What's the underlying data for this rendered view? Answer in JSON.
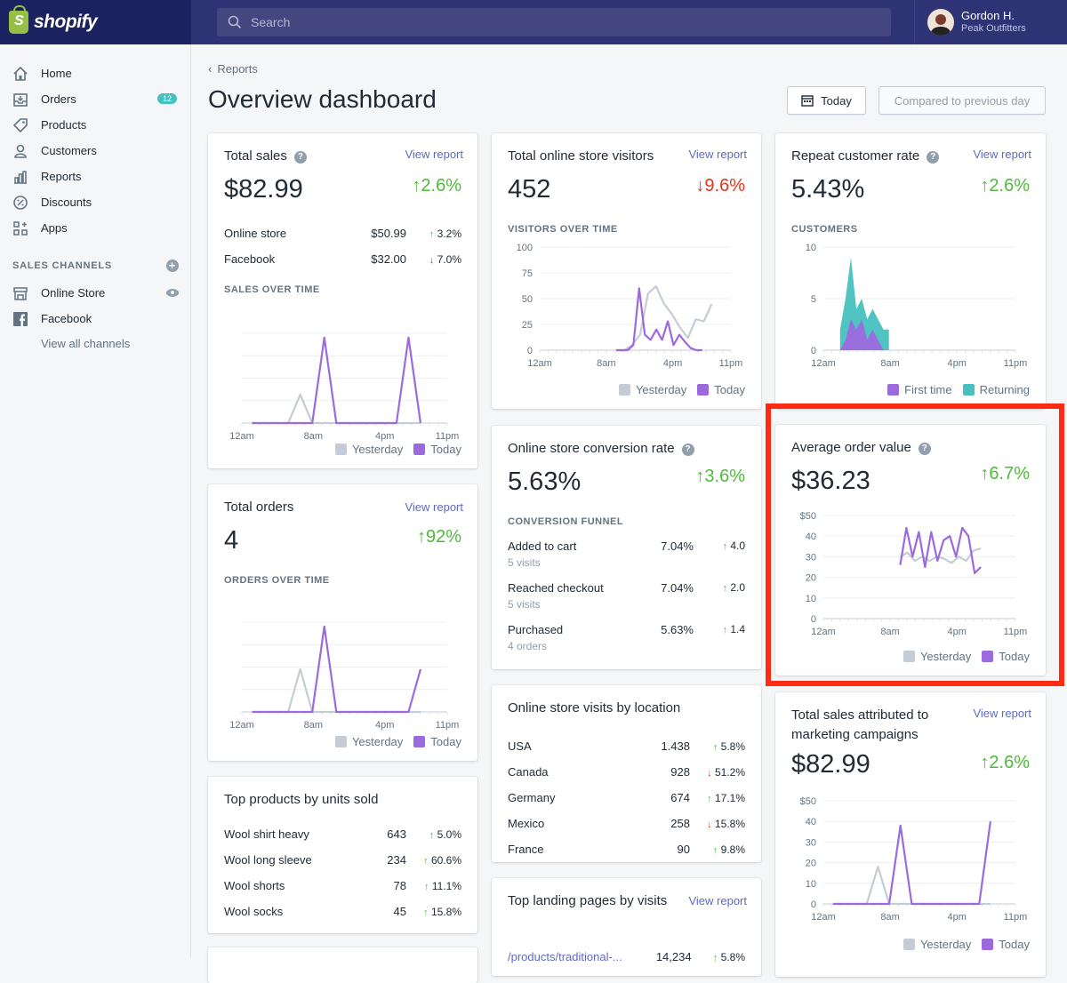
{
  "brand": {
    "name": "shopify"
  },
  "search": {
    "placeholder": "Search"
  },
  "user": {
    "name": "Gordon H.",
    "store": "Peak Outfitters"
  },
  "sidebar": {
    "items": [
      {
        "label": "Home",
        "icon": "home-icon"
      },
      {
        "label": "Orders",
        "icon": "orders-icon",
        "badge": "12"
      },
      {
        "label": "Products",
        "icon": "tag-icon"
      },
      {
        "label": "Customers",
        "icon": "person-icon"
      },
      {
        "label": "Reports",
        "icon": "bar-chart-icon"
      },
      {
        "label": "Discounts",
        "icon": "discount-icon"
      },
      {
        "label": "Apps",
        "icon": "apps-icon"
      }
    ],
    "sales_channels_header": "SALES CHANNELS",
    "channels": [
      {
        "label": "Online Store",
        "icon": "store-icon"
      },
      {
        "label": "Facebook",
        "icon": "facebook-icon"
      }
    ],
    "view_all": "View all channels"
  },
  "breadcrumb": "Reports",
  "page_title": "Overview dashboard",
  "date_button": "Today",
  "compare_button": "Compared to previous day",
  "colors": {
    "accent": "#5c6ac4",
    "up": "#50b83c",
    "down": "#de3618",
    "today": "#9c6ade",
    "yesterday": "#c4cdd5",
    "returning": "#47c1bf",
    "highlight": "#ff2a12"
  },
  "legend": {
    "yesterday": "Yesterday",
    "today": "Today",
    "first_time": "First time",
    "returning": "Returning"
  },
  "view_report": "View report",
  "total_sales": {
    "title": "Total sales",
    "value": "$82.99",
    "change": "2.6%",
    "rows": [
      {
        "name": "Online store",
        "value": "$50.99",
        "change": "3.2%",
        "dir": "up"
      },
      {
        "name": "Facebook",
        "value": "$32.00",
        "change": "7.0%",
        "dir": "down"
      }
    ],
    "chart_label": "SALES OVER TIME"
  },
  "total_orders": {
    "title": "Total orders",
    "value": "4",
    "change": "92%",
    "chart_label": "ORDERS OVER TIME"
  },
  "top_products": {
    "title": "Top products by units sold",
    "rows": [
      {
        "name": "Wool shirt heavy",
        "value": "643",
        "change": "5.0%"
      },
      {
        "name": "Wool long sleeve",
        "value": "234",
        "change": "60.6%"
      },
      {
        "name": "Wool shorts",
        "value": "78",
        "change": "11.1%"
      },
      {
        "name": "Wool socks",
        "value": "45",
        "change": "15.8%"
      }
    ]
  },
  "visitors": {
    "title": "Total online store visitors",
    "value": "452",
    "change": "9.6%",
    "chart_label": "VISITORS OVER TIME"
  },
  "conversion": {
    "title": "Online store conversion rate",
    "value": "5.63%",
    "change": "3.6%",
    "chart_label": "CONVERSION FUNNEL",
    "rows": [
      {
        "name": "Added to cart",
        "sub": "5 visits",
        "value": "7.04%",
        "change": "4.0"
      },
      {
        "name": "Reached checkout",
        "sub": "5 visits",
        "value": "7.04%",
        "change": "2.0"
      },
      {
        "name": "Purchased",
        "sub": "4 orders",
        "value": "5.63%",
        "change": "1.4"
      }
    ]
  },
  "location": {
    "title": "Online store visits by location",
    "rows": [
      {
        "name": "USA",
        "value": "1.438",
        "change": "5.8%",
        "dir": "up"
      },
      {
        "name": "Canada",
        "value": "928",
        "change": "51.2%",
        "dir": "down"
      },
      {
        "name": "Germany",
        "value": "674",
        "change": "17.1%",
        "dir": "up"
      },
      {
        "name": "Mexico",
        "value": "258",
        "change": "15.8%",
        "dir": "down"
      },
      {
        "name": "France",
        "value": "90",
        "change": "9.8%",
        "dir": "up"
      }
    ]
  },
  "landing": {
    "title": "Top landing pages by visits",
    "rows": [
      {
        "name": "/products/traditional-...",
        "value": "14,234",
        "change": "5.8%"
      }
    ]
  },
  "repeat": {
    "title": "Repeat customer rate",
    "value": "5.43%",
    "change": "2.6%",
    "chart_label": "CUSTOMERS"
  },
  "aov": {
    "title": "Average order value",
    "value": "$36.23",
    "change": "6.7%"
  },
  "marketing": {
    "title_line1": "Total sales attributed to",
    "title_line2": "marketing campaigns",
    "value": "$82.99",
    "change": "2.6%"
  },
  "chart_data": [
    {
      "type": "line",
      "id": "sales",
      "x_ticks": [
        "12am",
        "8am",
        "4pm",
        "11pm"
      ],
      "series": [
        {
          "name": "Yesterday",
          "values": [
            0,
            0,
            0,
            0,
            1,
            0,
            0,
            0,
            0,
            0,
            0,
            0,
            0,
            0,
            0
          ]
        },
        {
          "name": "Today",
          "values": [
            0,
            0,
            0,
            0,
            0,
            0,
            3,
            0,
            0,
            0,
            0,
            0,
            0,
            3,
            0
          ]
        }
      ]
    },
    {
      "type": "line",
      "id": "orders",
      "x_ticks": [
        "12am",
        "8am",
        "4pm",
        "11pm"
      ],
      "series": [
        {
          "name": "Yesterday",
          "values": [
            0,
            0,
            0,
            0,
            1,
            0,
            0,
            0,
            0,
            0,
            0,
            0,
            0,
            0,
            0
          ]
        },
        {
          "name": "Today",
          "values": [
            0,
            0,
            0,
            0,
            0,
            0,
            2,
            0,
            0,
            0,
            0,
            0,
            0,
            0,
            1
          ]
        }
      ]
    },
    {
      "type": "line",
      "id": "visitors",
      "y_ticks": [
        "100",
        "75",
        "50",
        "25",
        "0"
      ],
      "ylim": [
        0,
        100
      ],
      "x_ticks": [
        "12am",
        "8am",
        "4pm",
        "11pm"
      ],
      "series": [
        {
          "name": "Yesterday",
          "values": [
            0,
            0,
            5,
            15,
            55,
            62,
            45,
            35,
            22,
            12,
            30,
            28,
            45
          ]
        },
        {
          "name": "Today",
          "values": [
            0,
            0,
            0,
            5,
            60,
            15,
            10,
            20,
            10,
            28,
            5,
            15,
            8,
            2,
            0,
            0
          ]
        }
      ]
    },
    {
      "type": "area",
      "id": "customers",
      "y_ticks": [
        "10",
        "5",
        "0"
      ],
      "ylim": [
        0,
        10
      ],
      "x_ticks": [
        "12am",
        "8am",
        "4pm",
        "11pm"
      ],
      "series": [
        {
          "name": "First time",
          "values": [
            0,
            1,
            3,
            2,
            3,
            1,
            2,
            1,
            0
          ]
        },
        {
          "name": "Returning",
          "values": [
            2,
            5,
            9,
            4,
            5,
            3,
            4,
            3,
            2,
            2
          ]
        }
      ]
    },
    {
      "type": "line",
      "id": "aov",
      "y_ticks": [
        "$50",
        "40",
        "30",
        "20",
        "10",
        "0"
      ],
      "ylim": [
        0,
        50
      ],
      "x_ticks": [
        "12am",
        "8am",
        "4pm",
        "11pm"
      ],
      "series": [
        {
          "name": "Yesterday",
          "values": [
            30,
            32,
            28,
            30,
            28,
            30,
            29,
            27,
            30,
            28,
            33,
            34
          ]
        },
        {
          "name": "Today",
          "values": [
            26,
            44,
            30,
            42,
            25,
            42,
            28,
            38,
            40,
            30,
            44,
            40,
            22,
            25
          ]
        }
      ]
    },
    {
      "type": "line",
      "id": "marketing",
      "y_ticks": [
        "$50",
        "40",
        "30",
        "20",
        "10",
        "0"
      ],
      "ylim": [
        0,
        50
      ],
      "x_ticks": [
        "12am",
        "8am",
        "4pm",
        "11pm"
      ],
      "series": [
        {
          "name": "Yesterday",
          "values": [
            0,
            0,
            0,
            0,
            18,
            0,
            0,
            0,
            0,
            0,
            0,
            0,
            0,
            0,
            0
          ]
        },
        {
          "name": "Today",
          "values": [
            0,
            0,
            0,
            0,
            0,
            0,
            38,
            0,
            0,
            0,
            0,
            0,
            0,
            0,
            40
          ]
        }
      ]
    }
  ]
}
